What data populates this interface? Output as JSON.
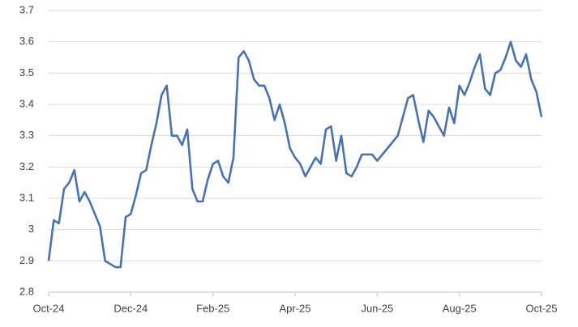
{
  "chart_data": {
    "type": "line",
    "categories": [
      "Oct-24",
      null,
      null,
      null,
      null,
      null,
      null,
      null,
      null,
      null,
      null,
      null,
      null,
      null,
      null,
      null,
      "Dec-24",
      null,
      null,
      null,
      null,
      null,
      null,
      null,
      null,
      null,
      null,
      null,
      null,
      null,
      null,
      null,
      "Feb-25",
      null,
      null,
      null,
      null,
      null,
      null,
      null,
      null,
      null,
      null,
      null,
      null,
      null,
      null,
      null,
      "Apr-25",
      null,
      null,
      null,
      null,
      null,
      null,
      null,
      null,
      null,
      null,
      null,
      null,
      null,
      null,
      null,
      "Jun-25",
      null,
      null,
      null,
      null,
      null,
      null,
      null,
      null,
      null,
      null,
      null,
      null,
      null,
      null,
      null,
      "Aug-25",
      null,
      null,
      null,
      null,
      null,
      null,
      null,
      null,
      null,
      null,
      null,
      null,
      null,
      null,
      null,
      "Oct-25"
    ],
    "values": [
      2.9,
      3.03,
      3.02,
      3.13,
      3.15,
      3.19,
      3.09,
      3.12,
      3.09,
      3.05,
      3.01,
      2.9,
      2.89,
      2.88,
      2.88,
      3.04,
      3.05,
      3.11,
      3.18,
      3.19,
      3.27,
      3.34,
      3.43,
      3.46,
      3.3,
      3.3,
      3.27,
      3.32,
      3.13,
      3.09,
      3.09,
      3.16,
      3.21,
      3.22,
      3.17,
      3.15,
      3.23,
      3.55,
      3.57,
      3.54,
      3.48,
      3.46,
      3.46,
      3.42,
      3.35,
      3.4,
      3.34,
      3.26,
      3.23,
      3.21,
      3.17,
      3.2,
      3.23,
      3.21,
      3.32,
      3.33,
      3.22,
      3.3,
      3.18,
      3.17,
      3.2,
      3.24,
      3.24,
      3.24,
      3.22,
      3.24,
      3.26,
      3.28,
      3.3,
      3.36,
      3.42,
      3.43,
      3.35,
      3.28,
      3.38,
      3.36,
      3.33,
      3.3,
      3.39,
      3.34,
      3.46,
      3.43,
      3.47,
      3.52,
      3.56,
      3.45,
      3.43,
      3.5,
      3.51,
      3.55,
      3.6,
      3.54,
      3.52,
      3.56,
      3.48,
      3.44,
      3.36
    ],
    "color": "#4a72b0",
    "ylim": [
      2.8,
      3.7
    ],
    "yticks": [
      2.8,
      2.9,
      3,
      3.1,
      3.2,
      3.3,
      3.4,
      3.5,
      3.6,
      3.7
    ],
    "grid": true
  }
}
